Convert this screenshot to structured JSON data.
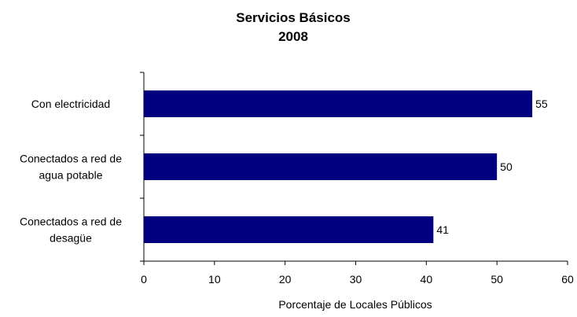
{
  "chart_data": {
    "type": "bar",
    "orientation": "horizontal",
    "title": "Servicios Básicos",
    "subtitle": "2008",
    "xlabel": "Porcentaje de Locales Públicos",
    "ylabel": "",
    "categories": [
      [
        "Con electricidad"
      ],
      [
        "Conectados a red de",
        "agua potable"
      ],
      [
        "Conectados a red de",
        "desagüe"
      ]
    ],
    "values": [
      55,
      50,
      41
    ],
    "data_labels": [
      "55",
      "50",
      "41"
    ],
    "xlim": [
      0,
      60
    ],
    "xticks": [
      0,
      10,
      20,
      30,
      40,
      50,
      60
    ],
    "xtick_labels": [
      "0",
      "10",
      "20",
      "30",
      "40",
      "50",
      "60"
    ],
    "grid": false,
    "legend": "none",
    "colors": {
      "bar": "#000080",
      "axis": "#000000",
      "text": "#000000"
    }
  }
}
